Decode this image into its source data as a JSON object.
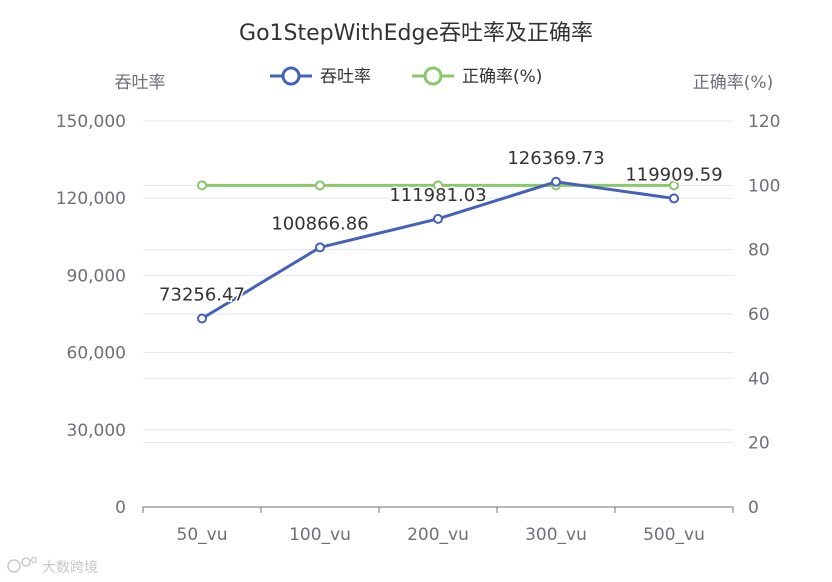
{
  "chart_data": {
    "type": "line",
    "title": "Go1StepWithEdge吞吐率及正确率",
    "categories": [
      "50_vu",
      "100_vu",
      "200_vu",
      "300_vu",
      "500_vu"
    ],
    "y_left": {
      "name": "吞吐率",
      "range": [
        0,
        150000
      ],
      "ticks": [
        "0",
        "30,000",
        "60,000",
        "90,000",
        "120,000",
        "150,000"
      ]
    },
    "y_right": {
      "name": "正确率(%)",
      "range": [
        0,
        120
      ],
      "ticks": [
        "0",
        "20",
        "40",
        "60",
        "80",
        "100",
        "120"
      ]
    },
    "legend_position": "top-center",
    "grid": true,
    "series": [
      {
        "name": "吞吐率",
        "axis": "left",
        "color": "#4662b8",
        "values": [
          73256.47,
          100866.86,
          111981.03,
          126369.73,
          119909.59
        ],
        "labels": [
          "73256.47",
          "100866.86",
          "111981.03",
          "126369.73",
          "119909.59"
        ]
      },
      {
        "name": "正确率(%)",
        "axis": "right",
        "color": "#8cc66d",
        "values": [
          100,
          100,
          100,
          100,
          100
        ]
      }
    ]
  },
  "watermark": "大数跨境",
  "watermark_icon": "brand-logo-icon"
}
